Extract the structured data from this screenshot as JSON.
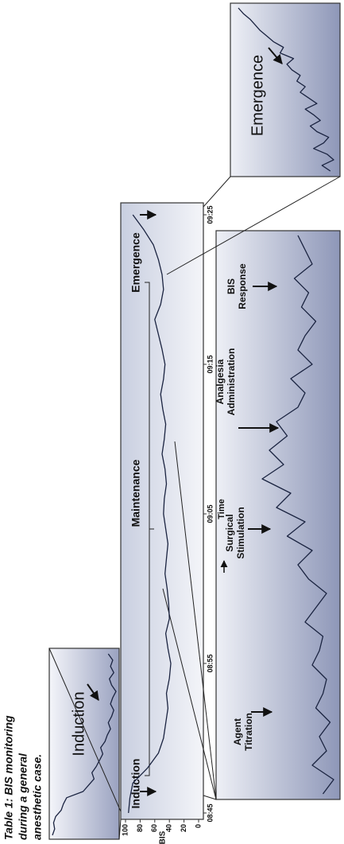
{
  "caption": {
    "lines": [
      "Table 1: BIS monitoring",
      "during a general",
      "anesthetic case."
    ]
  },
  "chart_data": [
    {
      "type": "line",
      "ylabel": "BIS",
      "xlabel": "Time",
      "x": [
        0,
        1,
        2,
        3,
        4,
        5,
        6,
        7,
        8,
        9,
        10,
        11,
        12,
        13,
        14,
        15,
        16,
        17,
        18,
        19,
        20,
        21,
        22,
        23,
        24,
        25,
        26,
        27,
        28,
        29,
        30,
        31,
        32,
        33,
        34,
        35,
        36,
        37,
        38,
        39,
        40
      ],
      "values": [
        96,
        94,
        90,
        70,
        55,
        48,
        45,
        42,
        44,
        40,
        38,
        42,
        45,
        40,
        41,
        43,
        46,
        44,
        42,
        45,
        48,
        47,
        44,
        46,
        50,
        47,
        45,
        49,
        52,
        48,
        46,
        50,
        55,
        60,
        52,
        48,
        50,
        55,
        62,
        75,
        90
      ],
      "xlim": [
        0,
        40
      ],
      "xticks": [
        {
          "value": 0,
          "label": "08:45"
        },
        {
          "value": 10,
          "label": "08:55"
        },
        {
          "value": 20,
          "label": "09:05"
        },
        {
          "value": 30,
          "label": "09:15"
        },
        {
          "value": 40,
          "label": "09:25"
        }
      ],
      "ylim": [
        0,
        100
      ],
      "yticks": [
        0,
        20,
        40,
        60,
        80,
        100
      ],
      "color": "#1a2340",
      "annotations": [
        "Induction",
        "Maintenance",
        "Emergence"
      ]
    },
    {
      "type": "line",
      "color": "#1a2340",
      "values": [
        98,
        96,
        97,
        95,
        90,
        88,
        85,
        70,
        65,
        60,
        62,
        58,
        55,
        52,
        54,
        50,
        48,
        45,
        47,
        44,
        42,
        45,
        43,
        40,
        44,
        46,
        42,
        45,
        43,
        47
      ],
      "annotations": [
        {
          "lines": [
            "Induction"
          ]
        }
      ]
    },
    {
      "type": "line",
      "color": "#1a2340",
      "values": [
        40,
        45,
        38,
        42,
        50,
        44,
        41,
        48,
        52,
        46,
        50,
        55,
        48,
        53,
        58,
        55,
        60,
        58,
        63,
        66,
        62,
        70,
        68,
        74,
        78,
        82,
        85,
        88,
        92,
        95
      ],
      "annotations": [
        {
          "lines": [
            "Emergence"
          ]
        }
      ]
    },
    {
      "type": "line",
      "color": "#1a2340",
      "values": [
        45,
        42,
        48,
        44,
        46,
        43,
        47,
        45,
        44,
        48,
        46,
        45,
        50,
        47,
        44,
        49,
        52,
        48,
        55,
        50,
        58,
        54,
        62,
        56,
        60,
        55,
        58,
        52,
        50,
        54,
        48,
        52,
        50,
        47,
        51,
        49,
        53,
        48,
        50,
        52
      ],
      "annotations": [
        {
          "lines": [
            "Agent",
            "Titration"
          ]
        },
        {
          "lines": [
            "Surgical",
            "Stimulation"
          ]
        },
        {
          "lines": [
            "Analgesia",
            "Administration"
          ]
        },
        {
          "lines": [
            "BIS",
            "Response"
          ]
        }
      ]
    }
  ]
}
